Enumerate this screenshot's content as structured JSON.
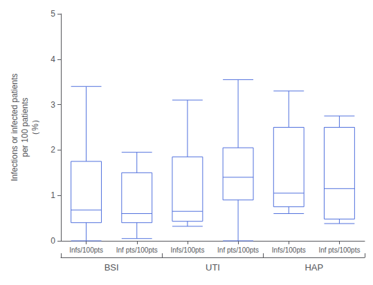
{
  "chart_data": {
    "type": "box",
    "categories": [
      "Infs/100pts",
      "Inf pts/100pts",
      "Infs/100pts",
      "Inf pts/100pts",
      "Infs/100pts",
      "Inf pts/100pts"
    ],
    "groups": [
      "BSI",
      "BSI",
      "UTI",
      "UTI",
      "HAP",
      "HAP"
    ],
    "values": [
      [
        0.0,
        0.4,
        0.68,
        1.75,
        3.4
      ],
      [
        0.05,
        0.4,
        0.6,
        1.5,
        1.95
      ],
      [
        0.32,
        0.43,
        0.65,
        1.85,
        3.1
      ],
      [
        0.0,
        0.9,
        1.4,
        2.05,
        3.55
      ],
      [
        0.6,
        0.75,
        1.05,
        2.5,
        3.3
      ],
      [
        0.38,
        0.48,
        1.15,
        2.5,
        2.75
      ]
    ],
    "ylabel": "Infections or infected patients\nper 100 patients\n（%）",
    "ylim": [
      0,
      5
    ],
    "yticks": [
      0,
      1,
      2,
      3,
      4,
      5
    ],
    "grid": false
  }
}
